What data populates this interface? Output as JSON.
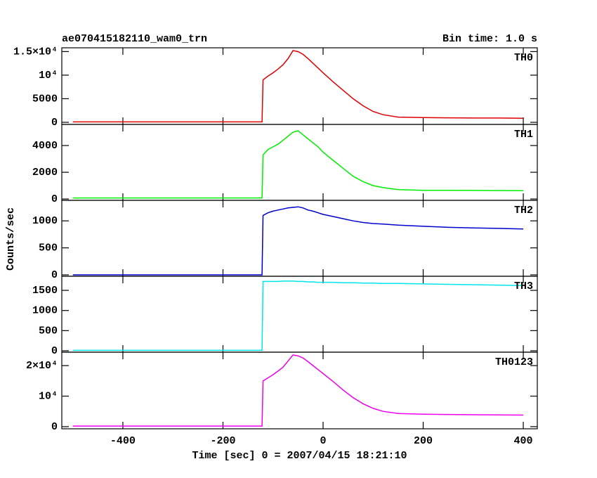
{
  "title": "ae070415182110_wam0_trn",
  "bin_time": "Bin time: 1.0 s",
  "ylabel": "Counts/sec",
  "chart_data": [
    {
      "type": "line",
      "xlim": [
        -522,
        428
      ],
      "xticks": [
        -400,
        -200,
        0,
        200,
        400
      ],
      "ylim": [
        -450,
        15800
      ],
      "yticks": [
        0,
        5000,
        {
          "value": 10000,
          "label": "10⁴"
        },
        {
          "value": 15000,
          "label": "1.5×10⁴"
        }
      ],
      "x": [
        -500,
        -400,
        -300,
        -200,
        -122,
        -120,
        -110,
        -100,
        -90,
        -80,
        -70,
        -60,
        -50,
        -40,
        -30,
        -20,
        -10,
        0,
        20,
        40,
        60,
        80,
        100,
        120,
        150,
        200,
        250,
        300,
        350,
        400
      ],
      "series": [
        {
          "name": "TH0",
          "color": "#e00000",
          "values": [
            80,
            80,
            80,
            80,
            80,
            9000,
            9800,
            10500,
            11300,
            12200,
            13500,
            15200,
            15000,
            14400,
            13500,
            12500,
            11500,
            10500,
            8600,
            6800,
            5000,
            3500,
            2300,
            1600,
            1100,
            1000,
            950,
            900,
            900,
            850
          ]
        }
      ]
    },
    {
      "type": "line",
      "xlim": [
        -522,
        428
      ],
      "xticks": [
        -400,
        -200,
        0,
        200,
        400
      ],
      "ylim": [
        -100,
        5580
      ],
      "yticks": [
        0,
        2000,
        4000
      ],
      "x": [
        -500,
        -400,
        -300,
        -200,
        -122,
        -120,
        -110,
        -100,
        -90,
        -80,
        -70,
        -60,
        -50,
        -40,
        -30,
        -20,
        -10,
        0,
        20,
        40,
        60,
        80,
        100,
        120,
        150,
        200,
        250,
        300,
        350,
        400
      ],
      "series": [
        {
          "name": "TH1",
          "color": "#00ee00",
          "values": [
            80,
            80,
            80,
            80,
            80,
            3300,
            3700,
            3900,
            4100,
            4400,
            4700,
            5000,
            5100,
            4800,
            4500,
            4200,
            3900,
            3500,
            2900,
            2300,
            1700,
            1300,
            1000,
            850,
            700,
            650,
            650,
            640,
            630,
            620
          ]
        }
      ]
    },
    {
      "type": "line",
      "xlim": [
        -522,
        428
      ],
      "xticks": [
        -400,
        -200,
        0,
        200,
        400
      ],
      "ylim": [
        -26,
        1380
      ],
      "yticks": [
        0,
        500,
        1000
      ],
      "x": [
        -500,
        -400,
        -300,
        -200,
        -122,
        -120,
        -110,
        -100,
        -90,
        -80,
        -70,
        -60,
        -50,
        -40,
        -30,
        -20,
        -10,
        0,
        20,
        40,
        60,
        80,
        100,
        120,
        150,
        200,
        250,
        300,
        350,
        400
      ],
      "series": [
        {
          "name": "TH2",
          "color": "#0000cc",
          "values": [
            0,
            0,
            0,
            0,
            0,
            1100,
            1150,
            1180,
            1200,
            1220,
            1240,
            1250,
            1260,
            1240,
            1200,
            1180,
            1150,
            1120,
            1080,
            1040,
            1000,
            970,
            950,
            940,
            920,
            900,
            880,
            870,
            860,
            850
          ]
        }
      ]
    },
    {
      "type": "line",
      "xlim": [
        -522,
        428
      ],
      "xticks": [
        -400,
        -200,
        0,
        200,
        400
      ],
      "ylim": [
        -35,
        1850
      ],
      "yticks": [
        0,
        500,
        1000,
        1500
      ],
      "x": [
        -500,
        -400,
        -300,
        -200,
        -122,
        -120,
        -110,
        -100,
        -90,
        -80,
        -70,
        -60,
        -50,
        -40,
        -30,
        -20,
        -10,
        0,
        20,
        40,
        60,
        80,
        100,
        120,
        150,
        200,
        250,
        300,
        350,
        400
      ],
      "series": [
        {
          "name": "TH3",
          "color": "#00e5ee",
          "values": [
            10,
            10,
            10,
            10,
            10,
            1720,
            1720,
            1720,
            1720,
            1730,
            1730,
            1730,
            1720,
            1720,
            1710,
            1710,
            1700,
            1700,
            1700,
            1690,
            1690,
            1680,
            1680,
            1670,
            1670,
            1660,
            1650,
            1640,
            1630,
            1620
          ]
        }
      ]
    },
    {
      "type": "line",
      "xlim": [
        -522,
        428
      ],
      "xticks": [
        -400,
        -200,
        0,
        200,
        400
      ],
      "xlabel": "Time [sec] 0 = 2007/04/15 18:21:10",
      "ylim": [
        -700,
        24400
      ],
      "yticks": [
        0,
        {
          "value": 10000,
          "label": "10⁴"
        },
        {
          "value": 20000,
          "label": "2×10⁴"
        }
      ],
      "x": [
        -500,
        -400,
        -300,
        -200,
        -122,
        -120,
        -110,
        -100,
        -90,
        -80,
        -70,
        -60,
        -50,
        -40,
        -30,
        -20,
        -10,
        0,
        20,
        40,
        60,
        80,
        100,
        120,
        150,
        200,
        250,
        300,
        350,
        400
      ],
      "series": [
        {
          "name": "TH0123",
          "color": "#ee00ee",
          "values": [
            200,
            200,
            200,
            200,
            200,
            15000,
            16000,
            17000,
            18200,
            19500,
            21500,
            23500,
            23200,
            22500,
            21300,
            20000,
            18700,
            17400,
            14800,
            12000,
            9500,
            7500,
            6000,
            5000,
            4300,
            4100,
            4000,
            3900,
            3850,
            3800
          ]
        }
      ]
    }
  ]
}
